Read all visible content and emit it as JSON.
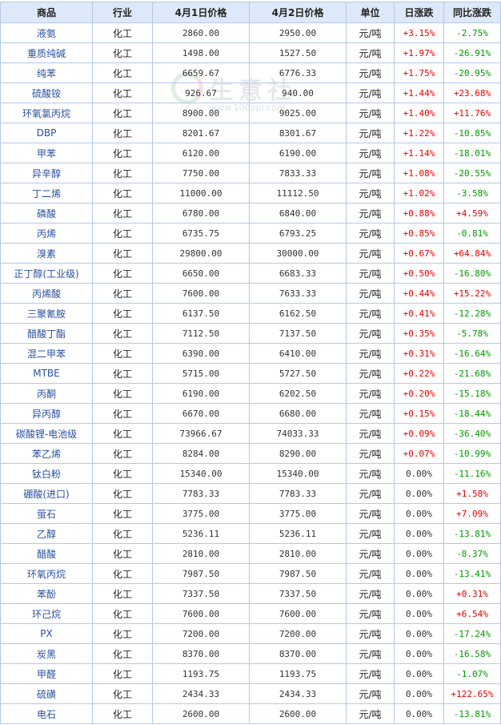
{
  "headers": [
    "商品",
    "行业",
    "4月1日价格",
    "4月2日价格",
    "单位",
    "日涨跌",
    "同比涨跌"
  ],
  "colors": {
    "up": "#e60000",
    "down": "#009900",
    "header_bg": "#dde9f8",
    "border": "#b3c9e8",
    "name": "#2850a0"
  },
  "watermark": {
    "text": "生意社",
    "url": "www.100ppi.com"
  },
  "rows": [
    {
      "name": "液氨",
      "industry": "化工",
      "p1": "2860.00",
      "p2": "2950.00",
      "unit": "元/吨",
      "day": "+3.15%",
      "yoy": "-2.75%"
    },
    {
      "name": "重质纯碱",
      "industry": "化工",
      "p1": "1498.00",
      "p2": "1527.50",
      "unit": "元/吨",
      "day": "+1.97%",
      "yoy": "-26.91%"
    },
    {
      "name": "纯苯",
      "industry": "化工",
      "p1": "6659.67",
      "p2": "6776.33",
      "unit": "元/吨",
      "day": "+1.75%",
      "yoy": "-20.95%"
    },
    {
      "name": "硫酸铵",
      "industry": "化工",
      "p1": "926.67",
      "p2": "940.00",
      "unit": "元/吨",
      "day": "+1.44%",
      "yoy": "+23.68%"
    },
    {
      "name": "环氧氯丙烷",
      "industry": "化工",
      "p1": "8900.00",
      "p2": "9025.00",
      "unit": "元/吨",
      "day": "+1.40%",
      "yoy": "+11.76%"
    },
    {
      "name": "DBP",
      "industry": "化工",
      "p1": "8201.67",
      "p2": "8301.67",
      "unit": "元/吨",
      "day": "+1.22%",
      "yoy": "-10.85%"
    },
    {
      "name": "甲苯",
      "industry": "化工",
      "p1": "6120.00",
      "p2": "6190.00",
      "unit": "元/吨",
      "day": "+1.14%",
      "yoy": "-18.01%"
    },
    {
      "name": "异辛醇",
      "industry": "化工",
      "p1": "7750.00",
      "p2": "7833.33",
      "unit": "元/吨",
      "day": "+1.08%",
      "yoy": "-20.55%"
    },
    {
      "name": "丁二烯",
      "industry": "化工",
      "p1": "11000.00",
      "p2": "11112.50",
      "unit": "元/吨",
      "day": "+1.02%",
      "yoy": "-3.58%"
    },
    {
      "name": "磷酸",
      "industry": "化工",
      "p1": "6780.00",
      "p2": "6840.00",
      "unit": "元/吨",
      "day": "+0.88%",
      "yoy": "+4.59%"
    },
    {
      "name": "丙烯",
      "industry": "化工",
      "p1": "6735.75",
      "p2": "6793.25",
      "unit": "元/吨",
      "day": "+0.85%",
      "yoy": "-0.81%"
    },
    {
      "name": "溴素",
      "industry": "化工",
      "p1": "29800.00",
      "p2": "30000.00",
      "unit": "元/吨",
      "day": "+0.67%",
      "yoy": "+64.84%"
    },
    {
      "name": "正丁醇(工业级)",
      "industry": "化工",
      "p1": "6650.00",
      "p2": "6683.33",
      "unit": "元/吨",
      "day": "+0.50%",
      "yoy": "-16.80%"
    },
    {
      "name": "丙烯酸",
      "industry": "化工",
      "p1": "7600.00",
      "p2": "7633.33",
      "unit": "元/吨",
      "day": "+0.44%",
      "yoy": "+15.22%"
    },
    {
      "name": "三聚氰胺",
      "industry": "化工",
      "p1": "6137.50",
      "p2": "6162.50",
      "unit": "元/吨",
      "day": "+0.41%",
      "yoy": "-12.28%"
    },
    {
      "name": "醋酸丁酯",
      "industry": "化工",
      "p1": "7112.50",
      "p2": "7137.50",
      "unit": "元/吨",
      "day": "+0.35%",
      "yoy": "-5.78%"
    },
    {
      "name": "混二甲苯",
      "industry": "化工",
      "p1": "6390.00",
      "p2": "6410.00",
      "unit": "元/吨",
      "day": "+0.31%",
      "yoy": "-16.64%"
    },
    {
      "name": "MTBE",
      "industry": "化工",
      "p1": "5715.00",
      "p2": "5727.50",
      "unit": "元/吨",
      "day": "+0.22%",
      "yoy": "-21.68%"
    },
    {
      "name": "丙酮",
      "industry": "化工",
      "p1": "6190.00",
      "p2": "6202.50",
      "unit": "元/吨",
      "day": "+0.20%",
      "yoy": "-15.18%"
    },
    {
      "name": "异丙醇",
      "industry": "化工",
      "p1": "6670.00",
      "p2": "6680.00",
      "unit": "元/吨",
      "day": "+0.15%",
      "yoy": "-18.44%"
    },
    {
      "name": "碳酸锂-电池级",
      "industry": "化工",
      "p1": "73966.67",
      "p2": "74033.33",
      "unit": "元/吨",
      "day": "+0.09%",
      "yoy": "-36.40%"
    },
    {
      "name": "苯乙烯",
      "industry": "化工",
      "p1": "8284.00",
      "p2": "8290.00",
      "unit": "元/吨",
      "day": "+0.07%",
      "yoy": "-10.99%"
    },
    {
      "name": "钛白粉",
      "industry": "化工",
      "p1": "15340.00",
      "p2": "15340.00",
      "unit": "元/吨",
      "day": "0.00%",
      "yoy": "-11.16%"
    },
    {
      "name": "硼酸(进口)",
      "industry": "化工",
      "p1": "7783.33",
      "p2": "7783.33",
      "unit": "元/吨",
      "day": "0.00%",
      "yoy": "+1.58%"
    },
    {
      "name": "萤石",
      "industry": "化工",
      "p1": "3775.00",
      "p2": "3775.00",
      "unit": "元/吨",
      "day": "0.00%",
      "yoy": "+7.09%"
    },
    {
      "name": "乙醇",
      "industry": "化工",
      "p1": "5236.11",
      "p2": "5236.11",
      "unit": "元/吨",
      "day": "0.00%",
      "yoy": "-13.81%"
    },
    {
      "name": "醋酸",
      "industry": "化工",
      "p1": "2810.00",
      "p2": "2810.00",
      "unit": "元/吨",
      "day": "0.00%",
      "yoy": "-8.37%"
    },
    {
      "name": "环氧丙烷",
      "industry": "化工",
      "p1": "7987.50",
      "p2": "7987.50",
      "unit": "元/吨",
      "day": "0.00%",
      "yoy": "-13.41%"
    },
    {
      "name": "苯酚",
      "industry": "化工",
      "p1": "7337.50",
      "p2": "7337.50",
      "unit": "元/吨",
      "day": "0.00%",
      "yoy": "+0.31%"
    },
    {
      "name": "环己烷",
      "industry": "化工",
      "p1": "7600.00",
      "p2": "7600.00",
      "unit": "元/吨",
      "day": "0.00%",
      "yoy": "+6.54%"
    },
    {
      "name": "PX",
      "industry": "化工",
      "p1": "7200.00",
      "p2": "7200.00",
      "unit": "元/吨",
      "day": "0.00%",
      "yoy": "-17.24%"
    },
    {
      "name": "炭黑",
      "industry": "化工",
      "p1": "8370.00",
      "p2": "8370.00",
      "unit": "元/吨",
      "day": "0.00%",
      "yoy": "-16.58%"
    },
    {
      "name": "甲醛",
      "industry": "化工",
      "p1": "1193.75",
      "p2": "1193.75",
      "unit": "元/吨",
      "day": "0.00%",
      "yoy": "-1.07%"
    },
    {
      "name": "硫磺",
      "industry": "化工",
      "p1": "2434.33",
      "p2": "2434.33",
      "unit": "元/吨",
      "day": "0.00%",
      "yoy": "+122.65%"
    },
    {
      "name": "电石",
      "industry": "化工",
      "p1": "2600.00",
      "p2": "2600.00",
      "unit": "元/吨",
      "day": "0.00%",
      "yoy": "-13.81%"
    }
  ]
}
